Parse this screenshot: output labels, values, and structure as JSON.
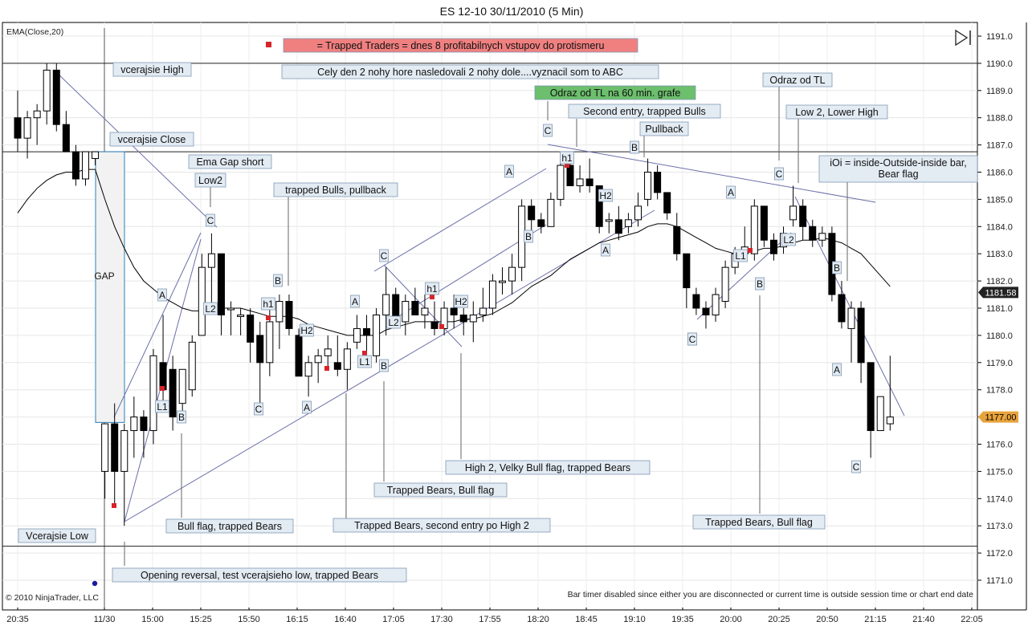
{
  "window": {
    "title": "ES 12-10  30/11/2010 (5 Min)",
    "indicator_label": "EMA(Close,20)",
    "copyright": "© 2010 NinjaTrader, LLC",
    "bar_timer_message": "Bar timer disabled since either you are disconnected or current time is outside session time or chart end date"
  },
  "colors": {
    "up_candle": "#ffffff",
    "down_candle": "#000000",
    "ema_line": "#000000",
    "trendline": "#6b6fa8",
    "label_bg": "#e3ebf3",
    "label_border": "#7f99b4",
    "legend_red": "#f08080",
    "legend_green": "#6cbf6c",
    "gap_box": "#2a7fb8",
    "last_price_bg": "#222222",
    "current_price_bg": "#e8a33c"
  },
  "chart_data": {
    "type": "candlestick",
    "instrument": "ES 12-10",
    "timeframe": "5 Min",
    "ylim": [
      1170.5,
      1191.5
    ],
    "y_ticks": [
      1171.0,
      1172.0,
      1173.0,
      1174.0,
      1175.0,
      1176.0,
      1177.0,
      1178.0,
      1179.0,
      1180.0,
      1181.0,
      1182.0,
      1183.0,
      1184.0,
      1185.0,
      1186.0,
      1187.0,
      1188.0,
      1189.0,
      1190.0,
      1191.0
    ],
    "x_ticks": [
      "20:35",
      "11/30",
      "15:00",
      "15:25",
      "15:50",
      "16:15",
      "16:40",
      "17:05",
      "17:30",
      "17:55",
      "18:20",
      "18:45",
      "19:10",
      "19:35",
      "20:00",
      "20:25",
      "20:50",
      "21:15",
      "21:40",
      "22:05"
    ],
    "horizontal_lines": {
      "prior_high": 1190.0,
      "prior_close": 1186.75,
      "prior_low": 1172.25
    },
    "price_markers": {
      "last": "1181.58",
      "current": "1177.00"
    },
    "gap_box": {
      "high": 1186.75,
      "low": 1176.8,
      "label": "GAP"
    },
    "candles": [
      {
        "o": 1188.0,
        "h": 1189.0,
        "l": 1186.75,
        "c": 1187.25
      },
      {
        "o": 1187.25,
        "h": 1188.25,
        "l": 1186.5,
        "c": 1188.0
      },
      {
        "o": 1188.0,
        "h": 1188.5,
        "l": 1187.0,
        "c": 1188.25
      },
      {
        "o": 1188.25,
        "h": 1190.0,
        "l": 1187.75,
        "c": 1189.75
      },
      {
        "o": 1189.75,
        "h": 1190.0,
        "l": 1187.5,
        "c": 1187.75
      },
      {
        "o": 1187.75,
        "h": 1188.25,
        "l": 1186.75,
        "c": 1186.75
      },
      {
        "o": 1186.75,
        "h": 1187.0,
        "l": 1185.5,
        "c": 1185.75
      },
      {
        "o": 1185.75,
        "h": 1186.75,
        "l": 1185.5,
        "c": 1186.75
      },
      {
        "o": 1186.5,
        "h": 1186.75,
        "l": 1186.25,
        "c": 1186.75
      },
      {
        "o": 1175.0,
        "h": 1176.75,
        "l": 1174.0,
        "c": 1176.75
      },
      {
        "o": 1176.75,
        "h": 1177.5,
        "l": 1173.75,
        "c": 1175.0
      },
      {
        "o": 1175.0,
        "h": 1176.75,
        "l": 1173.0,
        "c": 1176.5
      },
      {
        "o": 1176.5,
        "h": 1177.75,
        "l": 1175.5,
        "c": 1177.0
      },
      {
        "o": 1177.0,
        "h": 1177.25,
        "l": 1175.5,
        "c": 1176.5
      },
      {
        "o": 1176.5,
        "h": 1179.5,
        "l": 1176.0,
        "c": 1179.25
      },
      {
        "o": 1179.0,
        "h": 1180.75,
        "l": 1177.5,
        "c": 1178.0
      },
      {
        "o": 1178.75,
        "h": 1179.25,
        "l": 1176.5,
        "c": 1177.0
      },
      {
        "o": 1177.5,
        "h": 1178.75,
        "l": 1177.0,
        "c": 1178.75
      },
      {
        "o": 1178.0,
        "h": 1180.0,
        "l": 1177.75,
        "c": 1179.75
      },
      {
        "o": 1180.0,
        "h": 1183.0,
        "l": 1180.0,
        "c": 1182.5
      },
      {
        "o": 1182.5,
        "h": 1183.75,
        "l": 1181.0,
        "c": 1183.0
      },
      {
        "o": 1183.0,
        "h": 1183.0,
        "l": 1180.0,
        "c": 1180.75
      },
      {
        "o": 1181.0,
        "h": 1181.25,
        "l": 1180.0,
        "c": 1181.0
      },
      {
        "o": 1180.75,
        "h": 1181.0,
        "l": 1180.0,
        "c": 1180.75
      },
      {
        "o": 1180.75,
        "h": 1181.0,
        "l": 1179.0,
        "c": 1179.75
      },
      {
        "o": 1180.0,
        "h": 1180.5,
        "l": 1177.5,
        "c": 1179.0
      },
      {
        "o": 1179.0,
        "h": 1181.0,
        "l": 1178.5,
        "c": 1180.5
      },
      {
        "o": 1180.5,
        "h": 1181.5,
        "l": 1179.5,
        "c": 1181.25
      },
      {
        "o": 1181.25,
        "h": 1181.5,
        "l": 1180.0,
        "c": 1180.25
      },
      {
        "o": 1180.0,
        "h": 1180.25,
        "l": 1178.5,
        "c": 1178.5
      },
      {
        "o": 1178.5,
        "h": 1179.25,
        "l": 1177.75,
        "c": 1179.0
      },
      {
        "o": 1179.0,
        "h": 1179.5,
        "l": 1178.25,
        "c": 1179.25
      },
      {
        "o": 1179.25,
        "h": 1180.0,
        "l": 1178.75,
        "c": 1179.5
      },
      {
        "o": 1179.0,
        "h": 1180.0,
        "l": 1178.5,
        "c": 1178.75
      },
      {
        "o": 1178.75,
        "h": 1179.75,
        "l": 1178.0,
        "c": 1179.5
      },
      {
        "o": 1179.75,
        "h": 1180.75,
        "l": 1179.5,
        "c": 1180.25
      },
      {
        "o": 1180.25,
        "h": 1180.75,
        "l": 1179.25,
        "c": 1180.0
      },
      {
        "o": 1179.25,
        "h": 1181.0,
        "l": 1179.0,
        "c": 1180.75
      },
      {
        "o": 1180.75,
        "h": 1182.5,
        "l": 1180.0,
        "c": 1181.5
      },
      {
        "o": 1181.5,
        "h": 1181.75,
        "l": 1180.25,
        "c": 1180.5
      },
      {
        "o": 1180.5,
        "h": 1181.5,
        "l": 1180.0,
        "c": 1181.25
      },
      {
        "o": 1181.25,
        "h": 1181.75,
        "l": 1180.75,
        "c": 1180.75
      },
      {
        "o": 1180.75,
        "h": 1181.5,
        "l": 1180.25,
        "c": 1181.0
      },
      {
        "o": 1180.5,
        "h": 1181.25,
        "l": 1180.0,
        "c": 1180.25
      },
      {
        "o": 1180.25,
        "h": 1181.25,
        "l": 1180.0,
        "c": 1181.0
      },
      {
        "o": 1181.0,
        "h": 1181.5,
        "l": 1180.25,
        "c": 1180.75
      },
      {
        "o": 1180.75,
        "h": 1181.0,
        "l": 1180.0,
        "c": 1180.5
      },
      {
        "o": 1180.5,
        "h": 1181.25,
        "l": 1179.75,
        "c": 1180.75
      },
      {
        "o": 1180.75,
        "h": 1181.75,
        "l": 1180.5,
        "c": 1181.0
      },
      {
        "o": 1181.0,
        "h": 1182.25,
        "l": 1180.75,
        "c": 1182.0
      },
      {
        "o": 1182.0,
        "h": 1182.5,
        "l": 1181.5,
        "c": 1182.0
      },
      {
        "o": 1182.0,
        "h": 1183.0,
        "l": 1181.5,
        "c": 1182.5
      },
      {
        "o": 1182.5,
        "h": 1185.0,
        "l": 1182.0,
        "c": 1184.75
      },
      {
        "o": 1184.75,
        "h": 1185.0,
        "l": 1183.75,
        "c": 1184.25
      },
      {
        "o": 1184.25,
        "h": 1184.5,
        "l": 1183.75,
        "c": 1184.0
      },
      {
        "o": 1184.0,
        "h": 1185.25,
        "l": 1184.0,
        "c": 1185.0
      },
      {
        "o": 1185.0,
        "h": 1186.75,
        "l": 1184.75,
        "c": 1186.25
      },
      {
        "o": 1186.25,
        "h": 1186.5,
        "l": 1185.5,
        "c": 1185.5
      },
      {
        "o": 1185.5,
        "h": 1186.25,
        "l": 1185.25,
        "c": 1185.75
      },
      {
        "o": 1185.75,
        "h": 1186.5,
        "l": 1185.25,
        "c": 1185.5
      },
      {
        "o": 1185.5,
        "h": 1185.5,
        "l": 1183.75,
        "c": 1184.0
      },
      {
        "o": 1184.25,
        "h": 1184.5,
        "l": 1183.75,
        "c": 1184.25
      },
      {
        "o": 1184.25,
        "h": 1184.75,
        "l": 1183.5,
        "c": 1183.75
      },
      {
        "o": 1184.0,
        "h": 1184.5,
        "l": 1183.75,
        "c": 1184.25
      },
      {
        "o": 1184.25,
        "h": 1185.25,
        "l": 1184.0,
        "c": 1184.75
      },
      {
        "o": 1185.0,
        "h": 1186.5,
        "l": 1184.75,
        "c": 1186.0
      },
      {
        "o": 1186.0,
        "h": 1186.25,
        "l": 1185.0,
        "c": 1185.25
      },
      {
        "o": 1185.25,
        "h": 1185.25,
        "l": 1184.25,
        "c": 1184.5
      },
      {
        "o": 1184.0,
        "h": 1184.5,
        "l": 1182.75,
        "c": 1183.0
      },
      {
        "o": 1183.0,
        "h": 1183.0,
        "l": 1181.0,
        "c": 1181.75
      },
      {
        "o": 1181.5,
        "h": 1181.75,
        "l": 1180.75,
        "c": 1181.0
      },
      {
        "o": 1181.0,
        "h": 1181.25,
        "l": 1180.25,
        "c": 1180.75
      },
      {
        "o": 1180.75,
        "h": 1181.75,
        "l": 1180.5,
        "c": 1181.5
      },
      {
        "o": 1181.25,
        "h": 1182.75,
        "l": 1181.0,
        "c": 1182.5
      },
      {
        "o": 1182.5,
        "h": 1183.25,
        "l": 1182.25,
        "c": 1183.0
      },
      {
        "o": 1183.0,
        "h": 1184.0,
        "l": 1182.75,
        "c": 1183.25
      },
      {
        "o": 1183.0,
        "h": 1185.0,
        "l": 1182.75,
        "c": 1184.75
      },
      {
        "o": 1184.75,
        "h": 1184.75,
        "l": 1183.25,
        "c": 1183.5
      },
      {
        "o": 1183.5,
        "h": 1183.75,
        "l": 1182.75,
        "c": 1183.0
      },
      {
        "o": 1183.25,
        "h": 1184.0,
        "l": 1183.0,
        "c": 1183.75
      },
      {
        "o": 1184.25,
        "h": 1185.5,
        "l": 1184.0,
        "c": 1184.75
      },
      {
        "o": 1184.75,
        "h": 1185.0,
        "l": 1183.5,
        "c": 1184.0
      },
      {
        "o": 1184.0,
        "h": 1184.25,
        "l": 1183.25,
        "c": 1183.5
      },
      {
        "o": 1183.5,
        "h": 1184.0,
        "l": 1183.25,
        "c": 1183.75
      },
      {
        "o": 1183.75,
        "h": 1184.0,
        "l": 1181.25,
        "c": 1181.5
      },
      {
        "o": 1181.5,
        "h": 1182.0,
        "l": 1180.25,
        "c": 1180.5
      },
      {
        "o": 1180.25,
        "h": 1181.25,
        "l": 1179.0,
        "c": 1181.0
      },
      {
        "o": 1181.0,
        "h": 1181.25,
        "l": 1178.25,
        "c": 1179.0
      },
      {
        "o": 1179.0,
        "h": 1179.0,
        "l": 1175.5,
        "c": 1176.5
      },
      {
        "o": 1176.5,
        "h": 1177.75,
        "l": 1176.5,
        "c": 1177.75
      },
      {
        "o": 1176.75,
        "h": 1179.25,
        "l": 1176.5,
        "c": 1177.0
      }
    ],
    "ema": [
      1184.5,
      1185.0,
      1185.4,
      1185.7,
      1185.9,
      1186.0,
      1186.0,
      1186.1,
      1186.1,
      1185.0,
      1184.0,
      1183.2,
      1182.5,
      1182.0,
      1181.7,
      1181.4,
      1181.2,
      1181.0,
      1180.9,
      1180.9,
      1181.0,
      1181.0,
      1181.0,
      1181.0,
      1180.9,
      1180.8,
      1180.7,
      1180.7,
      1180.7,
      1180.6,
      1180.4,
      1180.3,
      1180.2,
      1180.1,
      1180.0,
      1180.0,
      1180.0,
      1180.0,
      1180.2,
      1180.3,
      1180.4,
      1180.5,
      1180.5,
      1180.5,
      1180.5,
      1180.5,
      1180.6,
      1180.6,
      1180.7,
      1180.8,
      1181.0,
      1181.2,
      1181.5,
      1181.8,
      1182.0,
      1182.2,
      1182.5,
      1182.8,
      1183.0,
      1183.2,
      1183.4,
      1183.5,
      1183.6,
      1183.7,
      1183.8,
      1184.0,
      1184.1,
      1184.1,
      1184.0,
      1183.8,
      1183.6,
      1183.4,
      1183.2,
      1183.1,
      1183.0,
      1183.0,
      1183.1,
      1183.2,
      1183.2,
      1183.3,
      1183.4,
      1183.5,
      1183.5,
      1183.6,
      1183.5,
      1183.4,
      1183.2,
      1183.0,
      1182.6,
      1182.2,
      1181.8
    ],
    "annotations": [
      "= Trapped Traders = dnes 8 profitabilnych vstupov do protismeru",
      "Cely den 2 nohy hore nasledovali 2 nohy dole....vyznacil som to ABC",
      "Odraz od TL na 60 min. grafe",
      "vcerajsie High",
      "vcerajsie Close",
      "Vcerajsie Low",
      "Ema Gap short",
      "Low2",
      "trapped Bulls, pullback",
      "Second entry, trapped Bulls",
      "Pullback",
      "Odraz od TL",
      "Low 2, Lower High",
      "iOi = inside-Outside-inside bar,",
      "Bear flag",
      "Bull flag, trapped Bears",
      "Trapped Bears, second entry po High 2",
      "Trapped Bears, Bull flag",
      "High 2, Velky Bull flag, trapped Bears",
      "Trapped Bears, Bull flag",
      "Opening reversal, test vcerajsieho low, trapped Bears"
    ],
    "letter_marks": [
      "A",
      "L1",
      "B",
      "C",
      "L2",
      "h1",
      "B",
      "H2",
      "L1",
      "A",
      "C",
      "A",
      "C",
      "L2",
      "B",
      "h1",
      "H2",
      "A",
      "B",
      "C",
      "h1",
      "H2",
      "A",
      "B",
      "B",
      "A",
      "C",
      "L1",
      "B",
      "C",
      "L2",
      "B",
      "A",
      "C"
    ]
  }
}
